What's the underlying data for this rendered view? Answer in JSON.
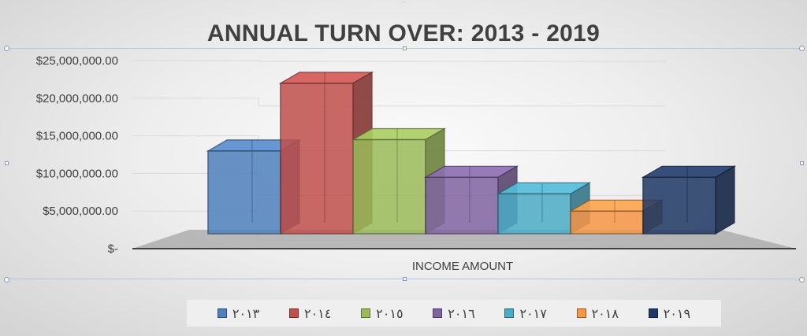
{
  "chart_data": {
    "type": "bar",
    "style": "3d-clustered",
    "title": "ANNUAL TURN OVER: 2013 - 2019",
    "categories": [
      "INCOME AMOUNT"
    ],
    "series": [
      {
        "name": "٢٠١٣",
        "color": "#4f81bd",
        "value": 11000000
      },
      {
        "name": "٢٠١٤",
        "color": "#c0504d",
        "value": 20000000
      },
      {
        "name": "٢٠١٥",
        "color": "#9bbb59",
        "value": 12500000
      },
      {
        "name": "٢٠١٦",
        "color": "#8064a2",
        "value": 7500000
      },
      {
        "name": "٢٠١٧",
        "color": "#4bacc6",
        "value": 5300000
      },
      {
        "name": "٢٠١٨",
        "color": "#f79646",
        "value": 3000000
      },
      {
        "name": "٢٠١٩",
        "color": "#1f3864",
        "value": 7500000
      }
    ],
    "y_ticks": [
      "$-",
      "$5,000,000.00",
      "$10,000,000.00",
      "$15,000,000.00",
      "$20,000,000.00",
      "$25,000,000.00"
    ],
    "ylim": [
      0,
      25000000
    ],
    "xlabel": "INCOME AMOUNT",
    "ylabel": "",
    "grid": true,
    "legend_position": "bottom"
  }
}
